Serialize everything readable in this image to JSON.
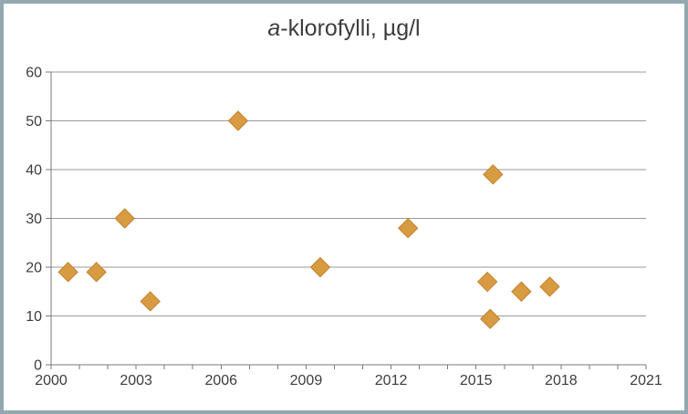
{
  "frame": {
    "border_color": "#93a9af",
    "background": "#ffffff"
  },
  "chart_data": {
    "type": "scatter",
    "title": "a-klorofylli, µg/l",
    "title_parts": {
      "italic": "a",
      "rest": "-klorofylli, µg/l"
    },
    "xlabel": "",
    "ylabel": "",
    "xlim": [
      2000,
      2021
    ],
    "ylim": [
      0,
      60
    ],
    "xticks": [
      2000,
      2003,
      2006,
      2009,
      2012,
      2015,
      2018,
      2021
    ],
    "x_minor_tick_step": 1,
    "yticks": [
      0,
      10,
      20,
      30,
      40,
      50,
      60
    ],
    "grid": "horizontal",
    "legend": "none",
    "series": [
      {
        "name": "a-klorofylli",
        "marker": "diamond",
        "marker_size": 21,
        "marker_fill": "#d99b41",
        "marker_edge": "#c0832f",
        "points": [
          {
            "x": 2000.6,
            "y": 19
          },
          {
            "x": 2001.6,
            "y": 19
          },
          {
            "x": 2002.6,
            "y": 30
          },
          {
            "x": 2003.5,
            "y": 13
          },
          {
            "x": 2006.6,
            "y": 50
          },
          {
            "x": 2009.5,
            "y": 20
          },
          {
            "x": 2012.6,
            "y": 28
          },
          {
            "x": 2015.4,
            "y": 17
          },
          {
            "x": 2015.5,
            "y": 9.4
          },
          {
            "x": 2015.6,
            "y": 39
          },
          {
            "x": 2016.6,
            "y": 15
          },
          {
            "x": 2017.6,
            "y": 16
          }
        ]
      }
    ],
    "colors": {
      "gridline": "#9a9a9a",
      "axis": "#7a7a7a",
      "tick_label": "#3d3d3d",
      "title": "#3d3d3d"
    }
  }
}
